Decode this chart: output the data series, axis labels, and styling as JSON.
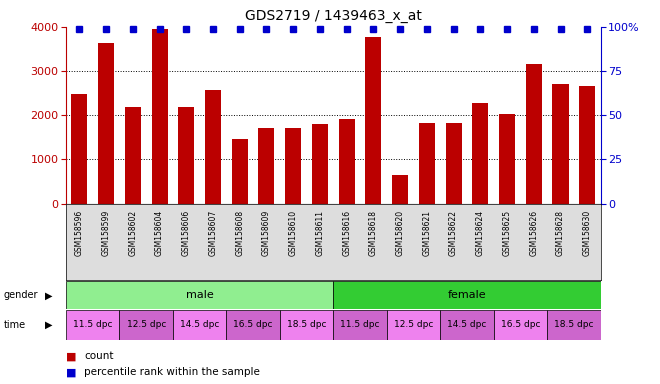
{
  "title": "GDS2719 / 1439463_x_at",
  "samples": [
    "GSM158596",
    "GSM158599",
    "GSM158602",
    "GSM158604",
    "GSM158606",
    "GSM158607",
    "GSM158608",
    "GSM158609",
    "GSM158610",
    "GSM158611",
    "GSM158616",
    "GSM158618",
    "GSM158620",
    "GSM158621",
    "GSM158622",
    "GSM158624",
    "GSM158625",
    "GSM158626",
    "GSM158628",
    "GSM158630"
  ],
  "counts": [
    2480,
    3630,
    2180,
    3950,
    2180,
    2570,
    1470,
    1700,
    1700,
    1810,
    1920,
    3780,
    640,
    1820,
    1820,
    2280,
    2030,
    3150,
    2700,
    2650
  ],
  "percentile_ranks": [
    98,
    98,
    98,
    98,
    95,
    98,
    98,
    98,
    98,
    98,
    95,
    98,
    98,
    95,
    98,
    95,
    98,
    98,
    98,
    98
  ],
  "bar_color": "#bb0000",
  "dot_color": "#0000cc",
  "gender_male_color": "#90ee90",
  "gender_female_color": "#33cc33",
  "time_colors": [
    "#ee82ee",
    "#cc66cc",
    "#ee82ee",
    "#cc66cc",
    "#ee82ee",
    "#cc66cc",
    "#ee82ee",
    "#cc66cc",
    "#ee82ee",
    "#cc66cc"
  ],
  "gender_groups": [
    {
      "label": "male",
      "start": 0,
      "end": 10
    },
    {
      "label": "female",
      "start": 10,
      "end": 20
    }
  ],
  "time_groups": [
    {
      "label": "11.5 dpc",
      "start": 0,
      "end": 2
    },
    {
      "label": "12.5 dpc",
      "start": 2,
      "end": 4
    },
    {
      "label": "14.5 dpc",
      "start": 4,
      "end": 6
    },
    {
      "label": "16.5 dpc",
      "start": 6,
      "end": 8
    },
    {
      "label": "18.5 dpc",
      "start": 8,
      "end": 10
    },
    {
      "label": "11.5 dpc",
      "start": 10,
      "end": 12
    },
    {
      "label": "12.5 dpc",
      "start": 12,
      "end": 14
    },
    {
      "label": "14.5 dpc",
      "start": 14,
      "end": 16
    },
    {
      "label": "16.5 dpc",
      "start": 16,
      "end": 18
    },
    {
      "label": "18.5 dpc",
      "start": 18,
      "end": 20
    }
  ],
  "ylim_left": [
    0,
    4000
  ],
  "ylim_right": [
    0,
    100
  ],
  "yticks_left": [
    0,
    1000,
    2000,
    3000,
    4000
  ],
  "yticks_right": [
    0,
    25,
    50,
    75,
    100
  ],
  "background_color": "#ffffff",
  "xlabels_bg": "#dddddd",
  "legend_count_color": "#bb0000",
  "legend_dot_color": "#0000cc",
  "fig_width": 6.6,
  "fig_height": 3.84,
  "dpi": 100
}
